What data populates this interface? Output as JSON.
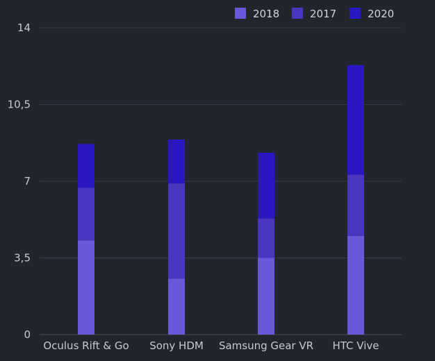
{
  "chart_data": {
    "type": "bar",
    "stacked": true,
    "categories": [
      "Oculus Rift & Go",
      "Sony HDM",
      "Samsung Gear VR",
      "HTC Vive"
    ],
    "series": [
      {
        "name": "2018",
        "color": "#6a58d8",
        "values": [
          4.3,
          2.55,
          3.5,
          4.5
        ]
      },
      {
        "name": "2017",
        "color": "#4a35be",
        "values": [
          2.4,
          4.35,
          1.8,
          2.8
        ]
      },
      {
        "name": "2020",
        "color": "#2a17bf",
        "values": [
          2.0,
          2.0,
          3.0,
          5.0
        ]
      }
    ],
    "ylim": [
      0,
      14
    ],
    "yticks": [
      0,
      3.5,
      7,
      10.5,
      14
    ],
    "ytick_labels": [
      "0",
      "3,5",
      "7",
      "10,5",
      "14"
    ],
    "title": "",
    "xlabel": "",
    "ylabel": "",
    "grid": true,
    "legend_position": "top-right",
    "colors": {
      "background": "#22252b",
      "gridline": "#3b3e46",
      "text": "#c9cad0"
    }
  }
}
